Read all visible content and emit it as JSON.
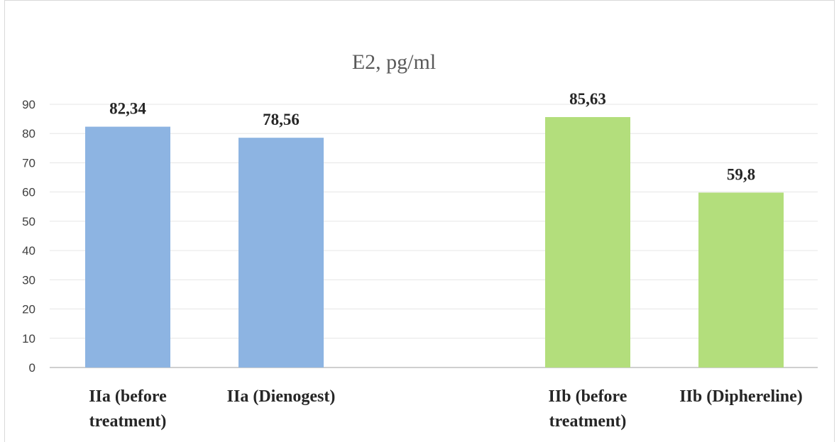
{
  "chart_data": {
    "type": "bar",
    "title": "E2, pg/ml",
    "categories": [
      [
        "IIa (before",
        "treatment)"
      ],
      [
        "IIa (Dienogest)"
      ],
      [
        "IIb (before",
        "treatment)"
      ],
      [
        "IIb (Diphereline)"
      ]
    ],
    "values": [
      82.34,
      78.56,
      85.63,
      59.8
    ],
    "data_labels": [
      "82,34",
      "78,56",
      "85,63",
      "59,8"
    ],
    "colors": [
      "#8db4e2",
      "#8db4e2",
      "#b3de7c",
      "#b3de7c"
    ],
    "ylim": [
      0,
      90
    ],
    "yticks": [
      0,
      10,
      20,
      30,
      40,
      50,
      60,
      70,
      80,
      90
    ],
    "grid": true,
    "legend": "none"
  }
}
